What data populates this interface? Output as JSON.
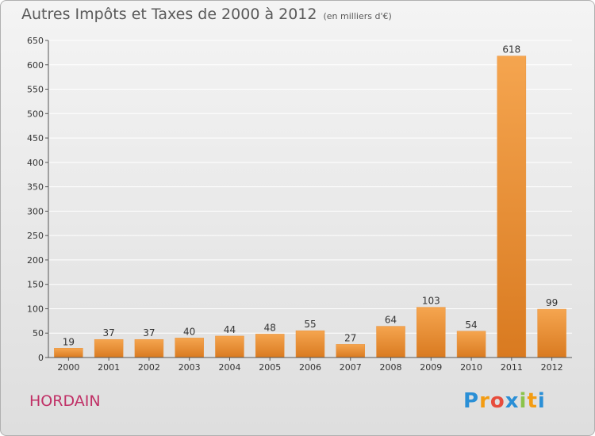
{
  "title": "Autres Impôts et Taxes de 2000 à 2012",
  "subtitle": "(en milliers d'€)",
  "town": "HORDAIN",
  "logo": {
    "text": "Proxiti",
    "colors": [
      "#2a8fd6",
      "#f39c12",
      "#e74c3c",
      "#2a8fd6",
      "#8bc34a",
      "#f39c12",
      "#2a8fd6"
    ]
  },
  "colors": {
    "bar_light": "#f5a54f",
    "bar_dark": "#d97a20",
    "grid": "#ffffff",
    "axis_text": "#333333"
  },
  "chart_data": {
    "type": "bar",
    "categories": [
      "2000",
      "2001",
      "2002",
      "2003",
      "2004",
      "2005",
      "2006",
      "2007",
      "2008",
      "2009",
      "2010",
      "2011",
      "2012"
    ],
    "values": [
      19,
      37,
      37,
      40,
      44,
      48,
      55,
      27,
      64,
      103,
      54,
      618,
      99
    ],
    "yticks": [
      0,
      50,
      100,
      150,
      200,
      250,
      300,
      350,
      400,
      450,
      500,
      550,
      600,
      650
    ],
    "ylim": [
      0,
      650
    ],
    "grid": true
  }
}
